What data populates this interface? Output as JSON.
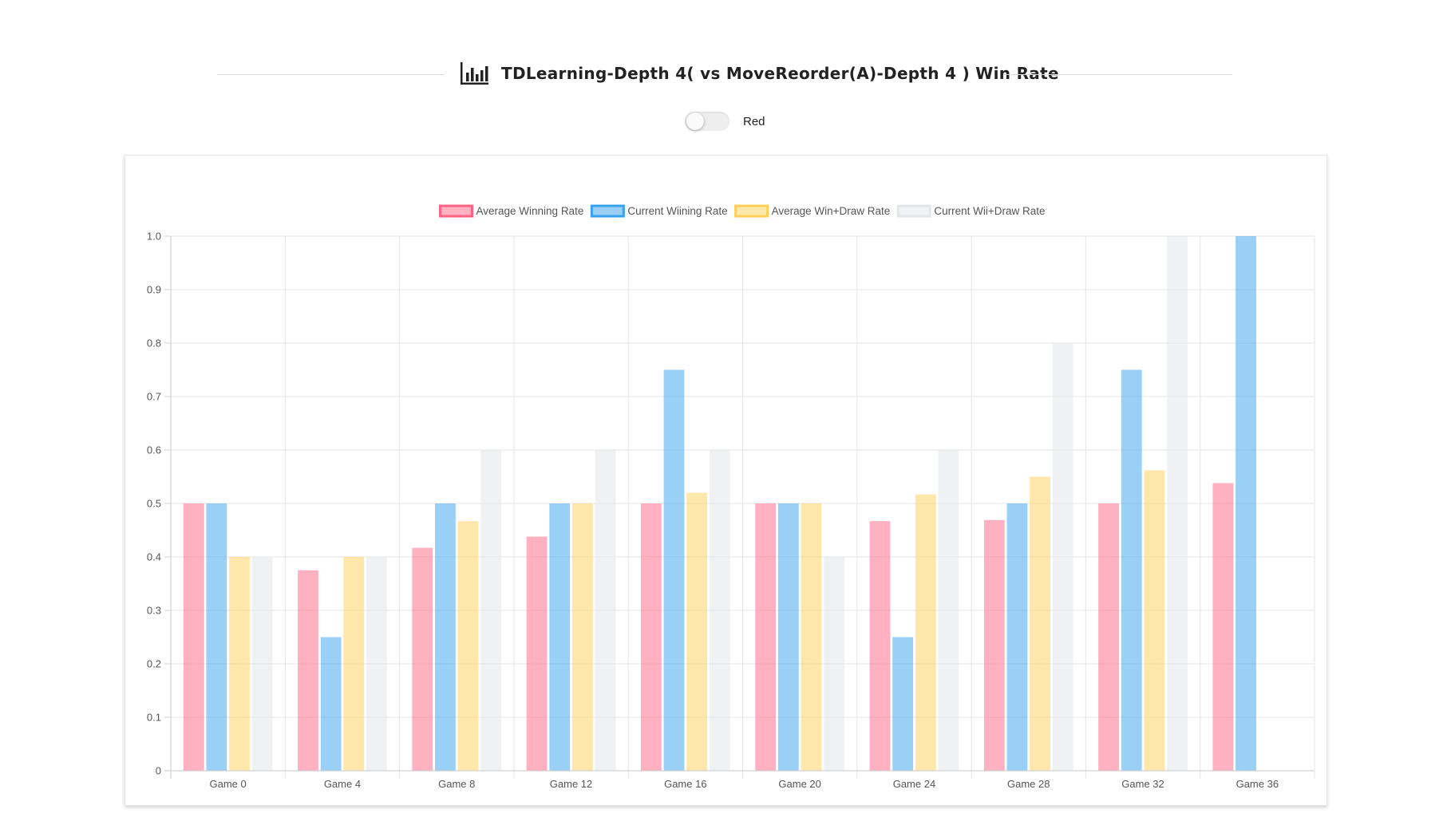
{
  "header": {
    "title": "TDLearning-Depth 4( vs MoveReorder(A)-Depth 4 ) Win Rate",
    "icon": "bar-chart-icon"
  },
  "toggle": {
    "label": "Red",
    "checked": false
  },
  "chart_data": {
    "type": "bar",
    "categories": [
      "Game 0",
      "Game 4",
      "Game 8",
      "Game 12",
      "Game 16",
      "Game 20",
      "Game 24",
      "Game 28",
      "Game 32",
      "Game 36"
    ],
    "series": [
      {
        "name": "Average Winning Rate",
        "color": "#ff6384",
        "values": [
          0.5,
          0.375,
          0.417,
          0.438,
          0.5,
          0.5,
          0.467,
          0.469,
          0.5,
          0.538
        ]
      },
      {
        "name": "Current Wiining Rate",
        "color": "#36a2eb",
        "values": [
          0.5,
          0.25,
          0.5,
          0.5,
          0.75,
          0.5,
          0.25,
          0.5,
          0.75,
          1.0
        ]
      },
      {
        "name": "Average Win+Draw Rate",
        "color": "#ffce56",
        "values": [
          0.4,
          0.4,
          0.467,
          0.5,
          0.52,
          0.5,
          0.517,
          0.55,
          0.562,
          null
        ]
      },
      {
        "name": "Current Wii+Draw Rate",
        "color": "#e4e5e7",
        "values": [
          0.4,
          0.4,
          0.6,
          0.6,
          0.6,
          0.4,
          0.6,
          0.8,
          1.0,
          null
        ]
      }
    ],
    "ylim": [
      0,
      1.0
    ],
    "yticks": [
      "0",
      "0.1",
      "0.2",
      "0.3",
      "0.4",
      "0.5",
      "0.6",
      "0.7",
      "0.8",
      "0.9",
      "1.0"
    ],
    "grid": true,
    "legend_position": "top"
  }
}
